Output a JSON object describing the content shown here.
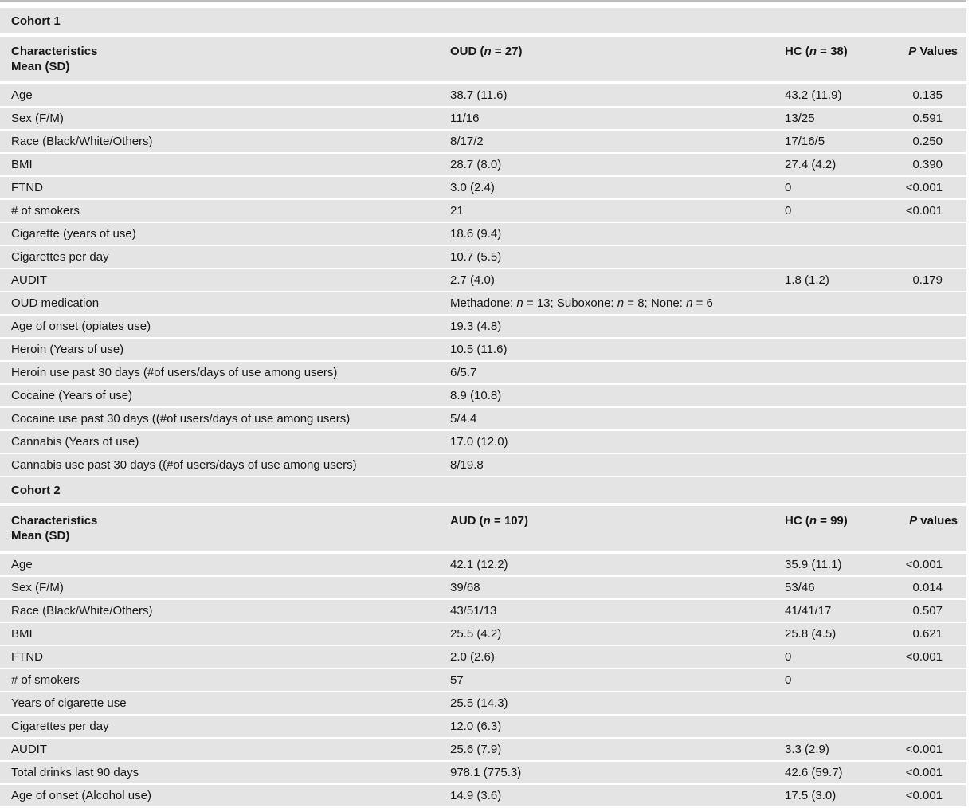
{
  "table": {
    "column_keys": [
      "label",
      "g1",
      "g2",
      "p"
    ],
    "sections": [
      {
        "section_label": "Cohort 1",
        "header": {
          "characteristics_line1": "Characteristics",
          "characteristics_line2": "Mean (SD)",
          "group1_html": "OUD (<i>n</i> = 27)",
          "group2_html": "HC (<i>n</i> = 38)",
          "p_html": "<i>P</i> Values"
        },
        "rows": [
          {
            "label": "Age",
            "g1": "38.7 (11.6)",
            "g2": "43.2 (11.9)",
            "p": "0.135"
          },
          {
            "label": "Sex (F/M)",
            "g1": "11/16",
            "g2": "13/25",
            "p": "0.591"
          },
          {
            "label": "Race (Black/White/Others)",
            "g1": "8/17/2",
            "g2": "17/16/5",
            "p": "0.250"
          },
          {
            "label": "BMI",
            "g1": "28.7 (8.0)",
            "g2": "27.4 (4.2)",
            "p": "0.390"
          },
          {
            "label": "FTND",
            "g1": "3.0 (2.4)",
            "g2": "0",
            "p": "<0.001"
          },
          {
            "label": "# of smokers",
            "g1": "21",
            "g2": "0",
            "p": "<0.001"
          },
          {
            "label": "Cigarette (years of use)",
            "g1": "18.6 (9.4)",
            "g2": "",
            "p": ""
          },
          {
            "label": "Cigarettes per day",
            "g1": "10.7 (5.5)",
            "g2": "",
            "p": ""
          },
          {
            "label": "AUDIT",
            "g1": "2.7 (4.0)",
            "g2": "1.8 (1.2)",
            "p": "0.179"
          },
          {
            "label": "OUD medication",
            "g1_html": "Methadone: <i>n</i> = 13; Suboxone: <i>n</i> = 8; None: <i>n</i> = 6",
            "g2": "",
            "p": ""
          },
          {
            "label": "Age of onset (opiates use)",
            "g1": "19.3 (4.8)",
            "g2": "",
            "p": ""
          },
          {
            "label": "Heroin (Years of use)",
            "g1": "10.5 (11.6)",
            "g2": "",
            "p": ""
          },
          {
            "label": "Heroin use past 30 days (#of users/days of use among users)",
            "g1": "6/5.7",
            "g2": "",
            "p": ""
          },
          {
            "label": "Cocaine (Years of use)",
            "g1": "8.9 (10.8)",
            "g2": "",
            "p": ""
          },
          {
            "label": "Cocaine use past 30 days ((#of users/days of use among users)",
            "g1": "5/4.4",
            "g2": "",
            "p": ""
          },
          {
            "label": "Cannabis (Years of use)",
            "g1": "17.0 (12.0)",
            "g2": "",
            "p": ""
          },
          {
            "label": "Cannabis use past 30 days ((#of users/days of use among users)",
            "g1": "8/19.8",
            "g2": "",
            "p": ""
          }
        ]
      },
      {
        "section_label": "Cohort 2",
        "header": {
          "characteristics_line1": "Characteristics",
          "characteristics_line2": "Mean (SD)",
          "group1_html": "AUD (<i>n</i> = 107)",
          "group2_html": "HC (<i>n</i> = 99)",
          "p_html": "<i>P</i> values"
        },
        "rows": [
          {
            "label": "Age",
            "g1": "42.1 (12.2)",
            "g2": "35.9 (11.1)",
            "p": "<0.001"
          },
          {
            "label": "Sex (F/M)",
            "g1": "39/68",
            "g2": "53/46",
            "p": "0.014"
          },
          {
            "label": "Race (Black/White/Others)",
            "g1": "43/51/13",
            "g2": "41/41/17",
            "p": "0.507"
          },
          {
            "label": "BMI",
            "g1": "25.5 (4.2)",
            "g2": "25.8 (4.5)",
            "p": "0.621"
          },
          {
            "label": "FTND",
            "g1": "2.0 (2.6)",
            "g2": "0",
            "p": "<0.001"
          },
          {
            "label": "# of smokers",
            "g1": "57",
            "g2": "0",
            "p": ""
          },
          {
            "label": "Years of cigarette use",
            "g1": "25.5 (14.3)",
            "g2": "",
            "p": ""
          },
          {
            "label": "Cigarettes per day",
            "g1": "12.0 (6.3)",
            "g2": "",
            "p": ""
          },
          {
            "label": "AUDIT",
            "g1": "25.6 (7.9)",
            "g2": "3.3 (2.9)",
            "p": "<0.001"
          },
          {
            "label": "Total drinks last 90 days",
            "g1": "978.1 (775.3)",
            "g2": "42.6 (59.7)",
            "p": "<0.001"
          },
          {
            "label": "Age of onset (Alcohol use)",
            "g1": "14.9 (3.6)",
            "g2": "17.5 (3.0)",
            "p": "<0.001"
          }
        ]
      }
    ],
    "colors": {
      "row_background": "#e4e4e4",
      "top_rule": "#bdbdbd",
      "text": "#161616"
    }
  }
}
